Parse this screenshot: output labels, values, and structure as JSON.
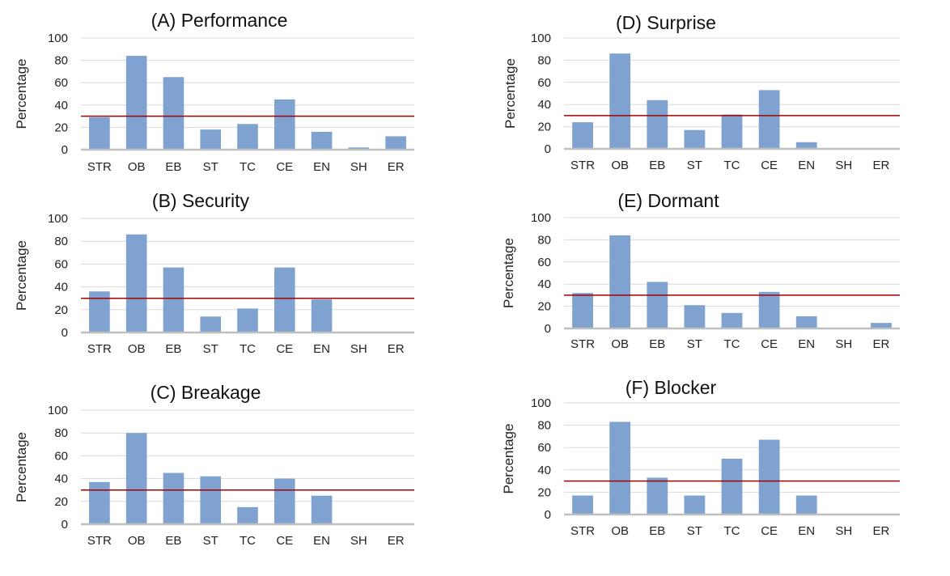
{
  "colors": {
    "bar": "#7fa2d0",
    "reference_line": "#a50000",
    "grid": "#d9d9d9",
    "axis": "#bfbfbf"
  },
  "chart_data": [
    {
      "type": "bar",
      "title": "(A) Performance",
      "ylabel": "Percentage",
      "xlabel": "",
      "categories": [
        "STR",
        "OB",
        "EB",
        "ST",
        "TC",
        "CE",
        "EN",
        "SH",
        "ER"
      ],
      "values": [
        29,
        84,
        65,
        18,
        23,
        45,
        16,
        2,
        12
      ],
      "ylim": [
        0,
        100
      ],
      "yticks": [
        "0",
        "20",
        "40",
        "60",
        "80",
        "100"
      ],
      "reference_line": 30,
      "grid": true
    },
    {
      "type": "bar",
      "title": "(B) Security",
      "ylabel": "Percentage",
      "xlabel": "",
      "categories": [
        "STR",
        "OB",
        "EB",
        "ST",
        "TC",
        "CE",
        "EN",
        "SH",
        "ER"
      ],
      "values": [
        36,
        86,
        57,
        14,
        21,
        57,
        29,
        0,
        0
      ],
      "ylim": [
        0,
        100
      ],
      "yticks": [
        "0",
        "20",
        "40",
        "60",
        "80",
        "100"
      ],
      "reference_line": 30,
      "grid": true
    },
    {
      "type": "bar",
      "title": "(C) Breakage",
      "ylabel": "Percentage",
      "xlabel": "",
      "categories": [
        "STR",
        "OB",
        "EB",
        "ST",
        "TC",
        "CE",
        "EN",
        "SH",
        "ER"
      ],
      "values": [
        37,
        80,
        45,
        42,
        15,
        40,
        25,
        0,
        0
      ],
      "ylim": [
        0,
        100
      ],
      "yticks": [
        "0",
        "20",
        "40",
        "60",
        "80",
        "100"
      ],
      "reference_line": 30,
      "grid": true
    },
    {
      "type": "bar",
      "title": "(D) Surprise",
      "ylabel": "Percentage",
      "xlabel": "",
      "categories": [
        "STR",
        "OB",
        "EB",
        "ST",
        "TC",
        "CE",
        "EN",
        "SH",
        "ER"
      ],
      "values": [
        24,
        86,
        44,
        17,
        31,
        53,
        6,
        0,
        0
      ],
      "ylim": [
        0,
        100
      ],
      "yticks": [
        "0",
        "20",
        "40",
        "60",
        "80",
        "100"
      ],
      "reference_line": 30,
      "grid": true
    },
    {
      "type": "bar",
      "title": "(E) Dormant",
      "ylabel": "Percentage",
      "xlabel": "",
      "categories": [
        "STR",
        "OB",
        "EB",
        "ST",
        "TC",
        "CE",
        "EN",
        "SH",
        "ER"
      ],
      "values": [
        32,
        84,
        42,
        21,
        14,
        33,
        11,
        0,
        5
      ],
      "ylim": [
        0,
        100
      ],
      "yticks": [
        "0",
        "20",
        "40",
        "60",
        "80",
        "100"
      ],
      "reference_line": 30,
      "grid": true
    },
    {
      "type": "bar",
      "title": "(F) Blocker",
      "ylabel": "Percentage",
      "xlabel": "",
      "categories": [
        "STR",
        "OB",
        "EB",
        "ST",
        "TC",
        "CE",
        "EN",
        "SH",
        "ER"
      ],
      "values": [
        17,
        83,
        33,
        17,
        50,
        67,
        17,
        0,
        0
      ],
      "ylim": [
        0,
        100
      ],
      "yticks": [
        "0",
        "20",
        "40",
        "60",
        "80",
        "100"
      ],
      "reference_line": 30,
      "grid": true
    }
  ]
}
